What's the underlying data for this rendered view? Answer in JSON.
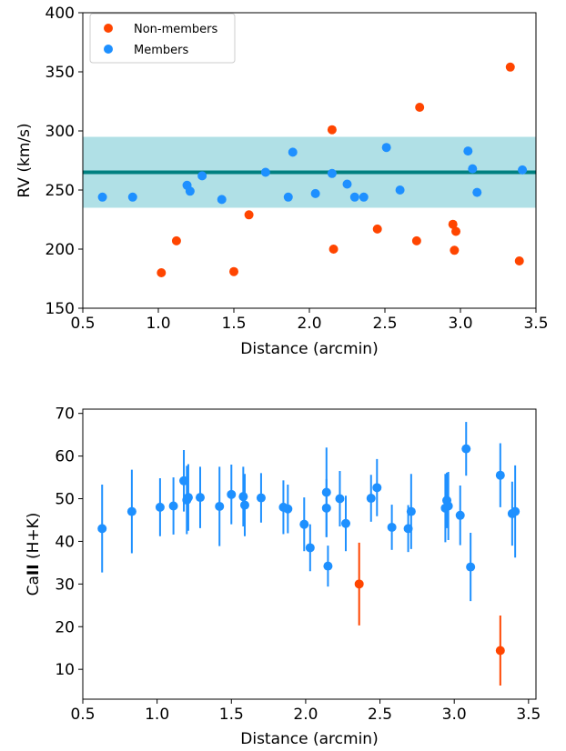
{
  "colors": {
    "non_members": "#ff4500",
    "members": "#1e90ff",
    "band": "#b0e0e6",
    "mean_line": "#008080"
  },
  "chart_data": [
    {
      "type": "scatter",
      "xlabel": "Distance (arcmin)",
      "ylabel": "RV (km/s)",
      "xlim": [
        0.5,
        3.5
      ],
      "ylim": [
        150,
        400
      ],
      "xticks": [
        "0.5",
        "1.0",
        "1.5",
        "2.0",
        "2.5",
        "3.0",
        "3.5"
      ],
      "yticks": [
        "150",
        "200",
        "250",
        "300",
        "350",
        "400"
      ],
      "legend_position": "top-left",
      "mean_line_y": 265,
      "band": [
        235,
        295
      ],
      "series": [
        {
          "name": "Non-members",
          "color": "#ff4500",
          "points": [
            [
              1.02,
              180
            ],
            [
              1.12,
              207
            ],
            [
              1.5,
              181
            ],
            [
              1.6,
              229
            ],
            [
              2.15,
              301
            ],
            [
              2.16,
              200
            ],
            [
              2.45,
              217
            ],
            [
              2.71,
              207
            ],
            [
              2.73,
              320
            ],
            [
              2.95,
              221
            ],
            [
              2.96,
              199
            ],
            [
              2.97,
              215
            ],
            [
              3.33,
              354
            ],
            [
              3.39,
              190
            ]
          ]
        },
        {
          "name": "Members",
          "color": "#1e90ff",
          "points": [
            [
              0.63,
              244
            ],
            [
              0.83,
              244
            ],
            [
              1.19,
              254
            ],
            [
              1.21,
              249
            ],
            [
              1.29,
              262
            ],
            [
              1.42,
              242
            ],
            [
              1.71,
              265
            ],
            [
              1.86,
              244
            ],
            [
              1.89,
              282
            ],
            [
              2.04,
              247
            ],
            [
              2.15,
              264
            ],
            [
              2.25,
              255
            ],
            [
              2.3,
              244
            ],
            [
              2.36,
              244
            ],
            [
              2.51,
              286
            ],
            [
              2.6,
              250
            ],
            [
              3.05,
              283
            ],
            [
              3.08,
              268
            ],
            [
              3.11,
              248
            ],
            [
              3.41,
              267
            ]
          ]
        }
      ]
    },
    {
      "type": "scatter",
      "xlabel": "Distance (arcmin)",
      "ylabel_prefix": "Ca",
      "ylabel_bold": "II",
      "ylabel_suffix": " (H+K)",
      "xlim": [
        0.5,
        3.55
      ],
      "ylim": [
        3,
        71
      ],
      "xticks": [
        "0.5",
        "1.0",
        "1.5",
        "2.0",
        "2.5",
        "3.0",
        "3.5"
      ],
      "yticks": [
        "10",
        "20",
        "30",
        "40",
        "50",
        "60",
        "70"
      ],
      "series": [
        {
          "name": "Members",
          "color": "#1e90ff",
          "points": [
            [
              0.63,
              43,
              10.3
            ],
            [
              0.83,
              47,
              9.8
            ],
            [
              1.02,
              48,
              6.8
            ],
            [
              1.11,
              48.3,
              6.7
            ],
            [
              1.18,
              54.2,
              7.2
            ],
            [
              1.2,
              49.7,
              8
            ],
            [
              1.21,
              50.3,
              7.8
            ],
            [
              1.29,
              50.3,
              7.2
            ],
            [
              1.42,
              48.2,
              9.3
            ],
            [
              1.5,
              51,
              7
            ],
            [
              1.58,
              50.5,
              7
            ],
            [
              1.59,
              48.5,
              7.3
            ],
            [
              1.7,
              50.2,
              5.8
            ],
            [
              1.85,
              48,
              6.3
            ],
            [
              1.88,
              47.6,
              5.7
            ],
            [
              1.99,
              44,
              6.3
            ],
            [
              2.03,
              38.5,
              5.5
            ],
            [
              2.14,
              51.5,
              10.5
            ],
            [
              2.14,
              47.8,
              6.8
            ],
            [
              2.15,
              34.2,
              4.8
            ],
            [
              2.23,
              50,
              6.5
            ],
            [
              2.27,
              44.2,
              6.5
            ],
            [
              2.44,
              50.1,
              5.5
            ],
            [
              2.48,
              52.6,
              6.7
            ],
            [
              2.58,
              43.3,
              5.3
            ],
            [
              2.69,
              43,
              5.5
            ],
            [
              2.71,
              47,
              8.8
            ],
            [
              2.94,
              47.8,
              8
            ],
            [
              2.95,
              49.6,
              6.5
            ],
            [
              2.96,
              48.3,
              8
            ],
            [
              3.04,
              46.1,
              7
            ],
            [
              3.08,
              61.7,
              6.3
            ],
            [
              3.11,
              34,
              8
            ],
            [
              3.31,
              55.5,
              7.5
            ],
            [
              3.39,
              46.5,
              7.5
            ],
            [
              3.41,
              47,
              10.8
            ]
          ]
        },
        {
          "name": "Non-members",
          "color": "#ff4500",
          "points": [
            [
              2.36,
              30,
              9.7
            ],
            [
              3.31,
              14.4,
              8.2
            ]
          ]
        }
      ]
    }
  ],
  "top_chart": {
    "xlabel": "Distance (arcmin)",
    "ylabel": "RV (km/s)",
    "legend": {
      "non_members": "Non-members",
      "members": "Members"
    }
  },
  "bottom_chart": {
    "xlabel": "Distance (arcmin)",
    "ylabel_prefix": "Ca",
    "ylabel_bold": "II",
    "ylabel_suffix": " (H+K)"
  }
}
